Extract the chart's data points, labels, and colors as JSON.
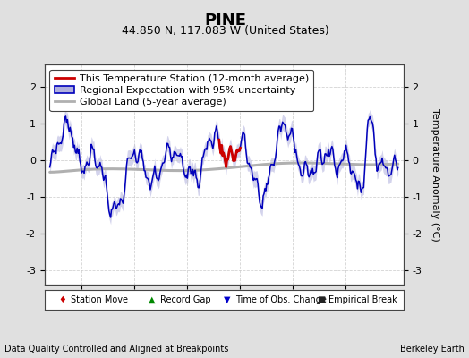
{
  "title": "PINE",
  "subtitle": "44.850 N, 117.083 W (United States)",
  "ylabel": "Temperature Anomaly (°C)",
  "xlabel_note": "Data Quality Controlled and Aligned at Breakpoints",
  "credit": "Berkeley Earth",
  "xlim": [
    1886.5,
    1920.5
  ],
  "ylim": [
    -3.4,
    2.6
  ],
  "yticks": [
    -3,
    -2,
    -1,
    0,
    1,
    2
  ],
  "xticks": [
    1890,
    1895,
    1900,
    1905,
    1910,
    1915
  ],
  "bg_color": "#e0e0e0",
  "plot_bg_color": "#ffffff",
  "grid_color": "#c8c8c8",
  "title_fontsize": 13,
  "subtitle_fontsize": 9,
  "legend_fontsize": 8,
  "tick_fontsize": 8,
  "blue_line_color": "#0000bb",
  "blue_fill_color": "#b0b0dd",
  "red_line_color": "#cc0000",
  "gray_line_color": "#b0b0b0",
  "note_fontsize": 7
}
